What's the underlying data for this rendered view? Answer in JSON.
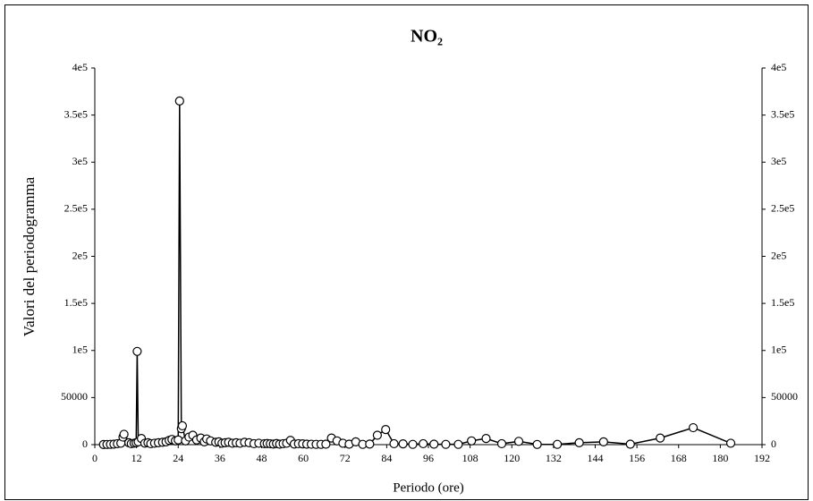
{
  "chart_data": {
    "type": "line",
    "title": "NO₂",
    "x_label": "Periodo (ore)",
    "y_label": "Valori del periodogramma",
    "color": "#000000",
    "x": [
      2.5,
      3.5,
      4.5,
      5.5,
      6.5,
      7.5,
      8.1,
      8.4,
      9.8,
      10.5,
      11.3,
      11.9,
      12.2,
      12.5,
      13.4,
      14.4,
      15.3,
      16.1,
      17.2,
      18.3,
      19.5,
      20.5,
      21.4,
      22.2,
      23.2,
      24.0,
      24.4,
      24.9,
      25.2,
      26.1,
      27.1,
      28.2,
      29.3,
      30.5,
      31.5,
      32.2,
      33.3,
      34.8,
      35.7,
      36.6,
      37.5,
      38.5,
      39.6,
      40.7,
      41.8,
      43.1,
      44.4,
      45.8,
      47.2,
      48.8,
      49.6,
      50.5,
      51.4,
      52.3,
      53.2,
      54.2,
      55.2,
      56.3,
      57.4,
      58.6,
      59.8,
      61.0,
      62.3,
      63.7,
      65.1,
      66.5,
      68.1,
      69.7,
      71.4,
      73.2,
      75.1,
      77.1,
      79.1,
      81.3,
      83.7,
      86.1,
      88.7,
      91.5,
      94.5,
      97.6,
      101.0,
      104.6,
      108.4,
      112.6,
      117.1,
      122.0,
      127.3,
      133.1,
      139.4,
      146.4,
      154.1,
      162.7,
      172.2,
      183.0
    ],
    "values": [
      100,
      200,
      300,
      500,
      1000,
      1500,
      8000,
      11000,
      2000,
      1000,
      1500,
      2000,
      99000,
      3000,
      6500,
      1500,
      2000,
      1000,
      1500,
      2000,
      2500,
      3000,
      4500,
      5500,
      4000,
      5000,
      365000,
      17000,
      20000,
      4000,
      8000,
      10000,
      5000,
      7000,
      3000,
      6000,
      4000,
      2500,
      3000,
      1500,
      2000,
      2500,
      1500,
      2000,
      1500,
      2500,
      2000,
      1000,
      1500,
      1000,
      1200,
      900,
      600,
      1200,
      500,
      1000,
      1500,
      4500,
      600,
      1000,
      800,
      500,
      400,
      300,
      300,
      500,
      7000,
      4000,
      1500,
      500,
      3000,
      300,
      600,
      10000,
      16000,
      1000,
      800,
      300,
      1000,
      500,
      300,
      300,
      4000,
      6500,
      1000,
      3500,
      200,
      300,
      2000,
      3000,
      500,
      7000,
      18000,
      1500
    ],
    "xlim": [
      0,
      192
    ],
    "xticks": [
      0,
      12,
      24,
      36,
      48,
      60,
      72,
      84,
      96,
      108,
      120,
      132,
      144,
      156,
      168,
      180,
      192
    ],
    "ylim": [
      0,
      400000
    ],
    "yticks": [
      0,
      50000,
      {
        "value": 100000,
        "label": "1e5"
      },
      {
        "value": 150000,
        "label": "1.5e5"
      },
      {
        "value": 200000,
        "label": "2e5"
      },
      {
        "value": 250000,
        "label": "2.5e5"
      },
      {
        "value": 300000,
        "label": "3e5"
      },
      {
        "value": 350000,
        "label": "3.5e5"
      },
      {
        "value": 400000,
        "label": "4e5"
      }
    ],
    "y2lim": [
      0,
      400000
    ],
    "y2ticks": [
      0,
      50000,
      {
        "value": 100000,
        "label": "1e5"
      },
      {
        "value": 150000,
        "label": "1.5e5"
      },
      {
        "value": 200000,
        "label": "2e5"
      },
      {
        "value": 250000,
        "label": "2.5e5"
      },
      {
        "value": 300000,
        "label": "3e5"
      },
      {
        "value": 350000,
        "label": "3.5e5"
      },
      {
        "value": 400000,
        "label": "4e5"
      }
    ]
  }
}
